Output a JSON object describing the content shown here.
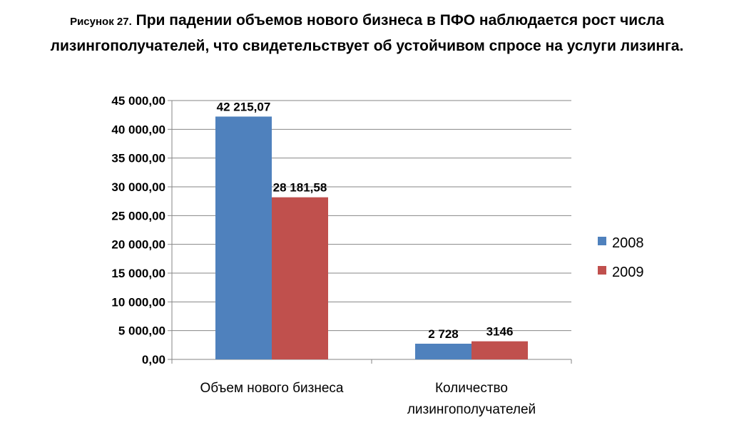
{
  "caption": {
    "prefix": "Рисунок 27.",
    "line1": "При падении объемов нового бизнеса в ПФО наблюдается рост числа",
    "line2": "лизингополучателей, что свидетельствует об устойчивом спросе на услуги лизинга."
  },
  "chart_data": {
    "type": "bar",
    "categories": [
      "Объем нового бизнеса",
      "Количество лизингополучателей"
    ],
    "category_lines": [
      [
        "Объем нового бизнеса"
      ],
      [
        "Количество",
        "лизингополучателей"
      ]
    ],
    "series": [
      {
        "name": "2008",
        "values": [
          42215.07,
          2728
        ],
        "labels": [
          "42 215,07",
          "2 728"
        ],
        "color": "#4f81bd"
      },
      {
        "name": "2009",
        "values": [
          28181.58,
          3146
        ],
        "labels": [
          "28 181,58",
          "3146"
        ],
        "color": "#c0504d"
      }
    ],
    "ylim": [
      0,
      45000
    ],
    "y_ticks": [
      0,
      5000,
      10000,
      15000,
      20000,
      25000,
      30000,
      35000,
      40000,
      45000
    ],
    "y_tick_labels": [
      "0,00",
      "5 000,00",
      "10 000,00",
      "15 000,00",
      "20 000,00",
      "25 000,00",
      "30 000,00",
      "35 000,00",
      "40 000,00",
      "45 000,00"
    ],
    "grid": true,
    "legend": "right",
    "title": "",
    "xlabel": "",
    "ylabel": ""
  }
}
